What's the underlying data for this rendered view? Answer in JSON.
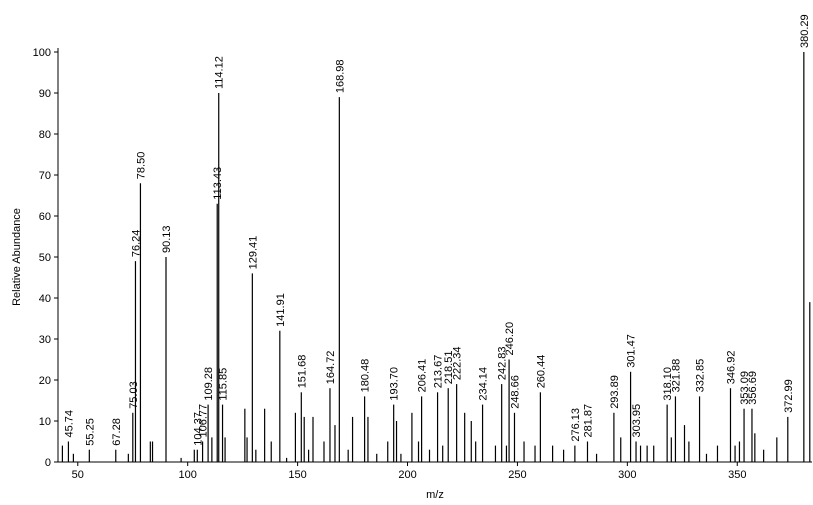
{
  "chart_data": {
    "type": "stick",
    "xlabel": "m/z",
    "ylabel": "Relative Abundance",
    "xlim": [
      41,
      384
    ],
    "ylim": [
      0,
      100
    ],
    "xticks": [
      50,
      100,
      150,
      200,
      250,
      300,
      350
    ],
    "yticks": [
      0,
      10,
      20,
      30,
      40,
      50,
      60,
      70,
      80,
      90,
      100
    ],
    "color": "#000000",
    "x": [
      43,
      45.74,
      48,
      55.25,
      67.28,
      73,
      75.03,
      76.24,
      78.5,
      83,
      84,
      90.13,
      97,
      103,
      104.37,
      106.77,
      109.28,
      111,
      113.43,
      114.12,
      115.85,
      117,
      126,
      127,
      129.41,
      131,
      135,
      138,
      141.91,
      145,
      149,
      151.68,
      153,
      155,
      157,
      162,
      164.72,
      167,
      168.98,
      173,
      175,
      180.48,
      182,
      186,
      191,
      193.7,
      195,
      197,
      202,
      205,
      206.41,
      210,
      213.67,
      216,
      218.51,
      222.34,
      226,
      229,
      231,
      234.14,
      240,
      242.83,
      245,
      246.2,
      248.66,
      253,
      258,
      260.44,
      266,
      271,
      276.13,
      281.87,
      286,
      293.89,
      297,
      301.47,
      303.95,
      306,
      309,
      312,
      318.1,
      320,
      321.88,
      326,
      328,
      332.85,
      336,
      341,
      346.92,
      349,
      351,
      353.09,
      356.69,
      358,
      362,
      368,
      372.99,
      380.29,
      383
    ],
    "values": [
      4,
      5,
      2,
      3,
      3,
      2,
      12,
      49,
      68,
      5,
      5,
      50,
      1,
      3,
      3,
      5,
      14,
      6,
      63,
      90,
      14,
      6,
      13,
      6,
      46,
      3,
      13,
      5,
      32,
      1,
      12,
      17,
      11,
      3,
      11,
      5,
      18,
      9,
      89,
      3,
      11,
      16,
      11,
      2,
      5,
      14,
      10,
      2,
      12,
      5,
      16,
      3,
      17,
      4,
      18,
      19,
      12,
      10,
      5,
      14,
      4,
      19,
      4,
      25,
      12,
      5,
      4,
      17,
      4,
      3,
      4,
      5,
      2,
      12,
      6,
      22,
      5,
      4,
      4,
      4,
      14,
      6,
      16,
      9,
      5,
      16,
      2,
      4,
      18,
      4,
      5,
      13,
      13,
      7,
      3,
      6,
      11,
      100,
      39
    ],
    "value_labels": [
      null,
      "45.74",
      null,
      "55.25",
      "67.28",
      null,
      "75.03",
      "76.24",
      "78.50",
      null,
      null,
      "90.13",
      null,
      null,
      "104.37",
      "106.77",
      "109.28",
      null,
      "113.43",
      "114.12",
      "115.85",
      null,
      null,
      null,
      "129.41",
      null,
      null,
      null,
      "141.91",
      null,
      null,
      "151.68",
      null,
      null,
      null,
      null,
      "164.72",
      null,
      "168.98",
      null,
      null,
      "180.48",
      null,
      null,
      null,
      "193.70",
      null,
      null,
      null,
      null,
      "206.41",
      null,
      "213.67",
      null,
      "218.51",
      "222.34",
      null,
      null,
      null,
      "234.14",
      null,
      "242.83",
      null,
      "246.20",
      "248.66",
      null,
      null,
      "260.44",
      null,
      null,
      "276.13",
      "281.87",
      null,
      "293.89",
      null,
      "301.47",
      "303.95",
      null,
      null,
      null,
      "318.10",
      null,
      "321.88",
      null,
      null,
      "332.85",
      null,
      null,
      "346.92",
      null,
      null,
      "353.09",
      "356.69",
      null,
      null,
      null,
      "372.99",
      "380.29",
      null
    ]
  }
}
